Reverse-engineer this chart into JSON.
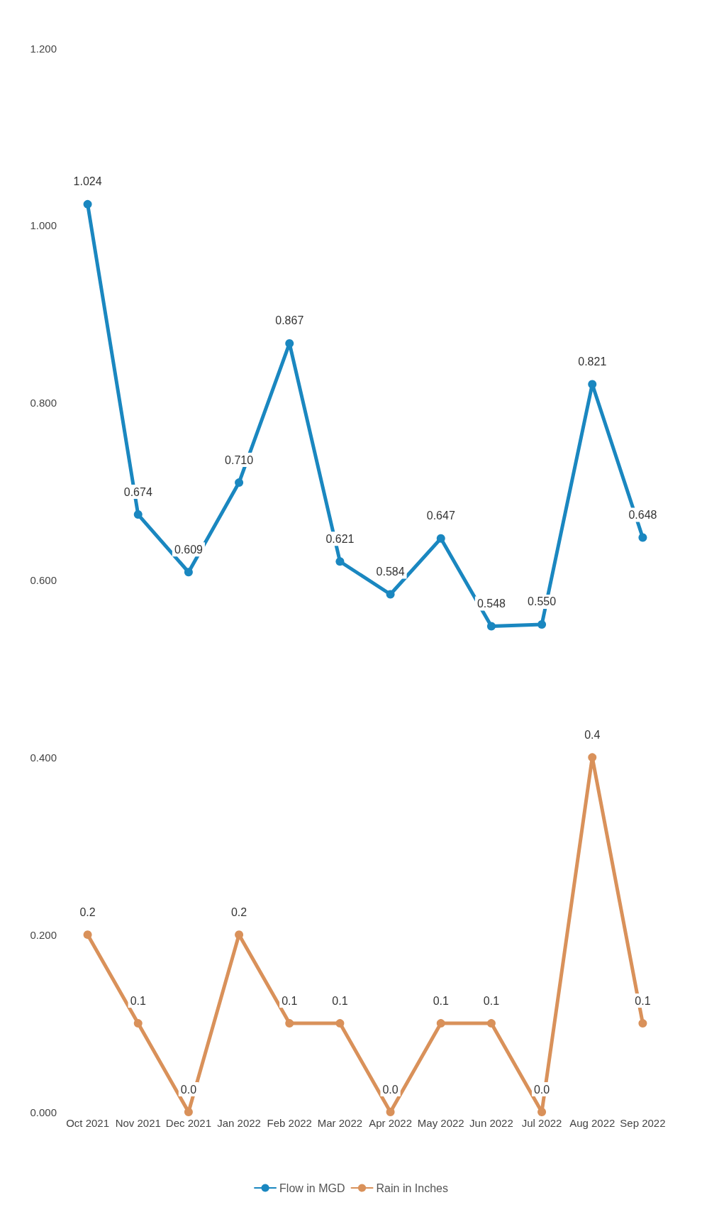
{
  "chart_data": {
    "type": "line",
    "categories": [
      "Oct 2021",
      "Nov 2021",
      "Dec 2021",
      "Jan 2022",
      "Feb 2022",
      "Mar 2022",
      "Apr 2022",
      "May 2022",
      "Jun 2022",
      "Jul 2022",
      "Aug 2022",
      "Sep 2022"
    ],
    "series": [
      {
        "name": "Flow in MGD",
        "color": "#1a87c0",
        "values": [
          1.024,
          0.674,
          0.609,
          0.71,
          0.867,
          0.621,
          0.584,
          0.647,
          0.548,
          0.55,
          0.821,
          0.648
        ],
        "value_labels": [
          "1.024",
          "0.674",
          "0.609",
          "0.710",
          "0.867",
          "0.621",
          "0.584",
          "0.647",
          "0.548",
          "0.550",
          "0.821",
          "0.648"
        ]
      },
      {
        "name": "Rain in Inches",
        "color": "#d9915a",
        "values": [
          0.2,
          0.1,
          0.0,
          0.2,
          0.1,
          0.1,
          0.0,
          0.1,
          0.1,
          0.0,
          0.4,
          0.1
        ],
        "value_labels": [
          "0.2",
          "0.1",
          "0.0",
          "0.2",
          "0.1",
          "0.1",
          "0.0",
          "0.1",
          "0.1",
          "0.0",
          "0.4",
          "0.1"
        ]
      }
    ],
    "ylim": [
      0,
      1.2
    ],
    "yticks": [
      {
        "value": 0,
        "label": "0.000"
      },
      {
        "value": 0.2,
        "label": "0.200"
      },
      {
        "value": 0.4,
        "label": "0.400"
      },
      {
        "value": 0.6,
        "label": "0.600"
      },
      {
        "value": 0.8,
        "label": "0.800"
      },
      {
        "value": 1,
        "label": "1.000"
      },
      {
        "value": 1.2,
        "label": "1.200"
      }
    ],
    "grid": false,
    "legend": "bottom",
    "marker": "circle",
    "line_style": "solid"
  }
}
